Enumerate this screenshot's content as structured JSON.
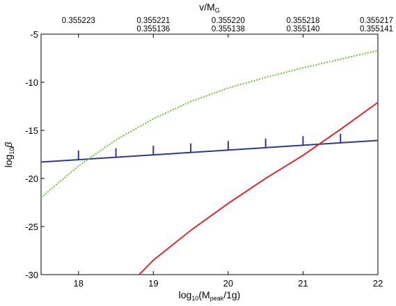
{
  "chart_data": {
    "type": "line",
    "xlabel": {
      "prefix": "log",
      "prefix_sub": "10",
      "open": "(M",
      "sub": "peak",
      "close": "/1g)"
    },
    "ylabel": {
      "prefix": "log",
      "prefix_sub": "10",
      "symbol": "β"
    },
    "top_axis_label": {
      "main": "v/M",
      "sub": "G"
    },
    "xlim": [
      17.5,
      22
    ],
    "ylim": [
      -30,
      -5
    ],
    "xticks": [
      18,
      19,
      20,
      21,
      22
    ],
    "yticks": [
      -5,
      -10,
      -15,
      -20,
      -25,
      -30
    ],
    "top_ticks": [
      {
        "x": 18.0,
        "values": [
          "0.355223"
        ]
      },
      {
        "x": 19.0,
        "values": [
          "0.355221",
          "0.355136"
        ]
      },
      {
        "x": 20.0,
        "values": [
          "0.355220",
          "0.355138"
        ]
      },
      {
        "x": 21.0,
        "values": [
          "0.355218",
          "0.355140"
        ]
      },
      {
        "x": 22.0,
        "values": [
          "0.355217",
          "0.355141"
        ]
      }
    ],
    "series": [
      {
        "color": "#2b3a8f",
        "style": "solid",
        "x": [
          17.5,
          22
        ],
        "y": [
          -18.3,
          -16.05
        ],
        "markers": [
          {
            "x": 18.0,
            "y": -18.05
          },
          {
            "x": 18.5,
            "y": -17.8
          },
          {
            "x": 19.0,
            "y": -17.55
          },
          {
            "x": 19.5,
            "y": -17.3
          },
          {
            "x": 20.0,
            "y": -17.05
          },
          {
            "x": 20.5,
            "y": -16.8
          },
          {
            "x": 21.0,
            "y": -16.55
          },
          {
            "x": 21.5,
            "y": -16.3
          }
        ]
      },
      {
        "color": "#e02a2a",
        "style": "solid",
        "x": [
          18.81,
          19.0,
          19.5,
          20.0,
          20.5,
          21.0,
          21.5,
          22.0
        ],
        "y": [
          -30.0,
          -28.5,
          -25.4,
          -22.6,
          -20.0,
          -17.6,
          -14.9,
          -12.1
        ]
      },
      {
        "color": "#6cc033",
        "style": "dotted",
        "x": [
          17.5,
          18.0,
          18.5,
          19.0,
          19.5,
          20.0,
          20.5,
          21.0,
          21.5,
          22.0
        ],
        "y": [
          -22.0,
          -18.7,
          -16.0,
          -13.8,
          -12.0,
          -10.6,
          -9.5,
          -8.5,
          -7.6,
          -6.7
        ]
      }
    ]
  }
}
